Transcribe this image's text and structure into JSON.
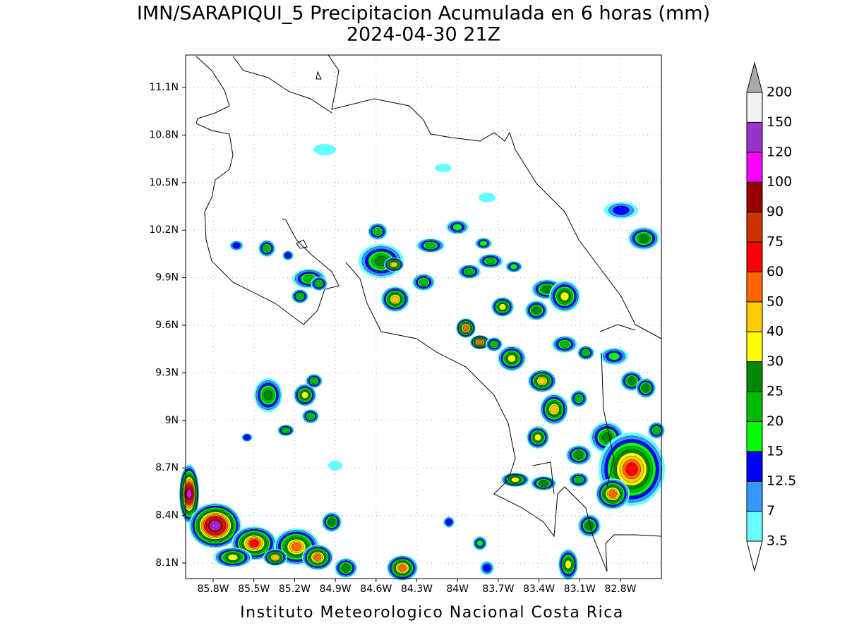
{
  "header": {
    "title": "IMN/SARAPIQUI_5 Precipitacion Acumulada en 6 horas (mm)",
    "subtitle": "2024-04-30 21Z"
  },
  "map": {
    "lat_labels": [
      "11.1N",
      "10.8N",
      "10.5N",
      "10.2N",
      "9.9N",
      "9.6N",
      "9.3N",
      "9N",
      "8.7N",
      "8.4N",
      "8.1N"
    ],
    "lon_labels": [
      "85.8W",
      "85.5W",
      "85.2W",
      "84.9W",
      "84.6W",
      "84.3W",
      "84W",
      "83.7W",
      "83.4W",
      "83.1W",
      "82.8W"
    ]
  },
  "colorbar": {
    "levels": [
      "3.5",
      "7",
      "12.5",
      "15",
      "20",
      "25",
      "30",
      "40",
      "50",
      "60",
      "75",
      "90",
      "100",
      "120",
      "150",
      "200"
    ],
    "colors": [
      "#66ffff",
      "#3399ff",
      "#0000ff",
      "#00ff00",
      "#00bb00",
      "#008800",
      "#ffff00",
      "#ffcc00",
      "#ff6600",
      "#ff0000",
      "#cc3300",
      "#990000",
      "#ff00ff",
      "#9933cc",
      "#f2f2f2"
    ],
    "over_color": "#aaaaaa",
    "under_color": "#ffffff"
  },
  "footer": "Instituto Meteorologico Nacional Costa Rica"
}
